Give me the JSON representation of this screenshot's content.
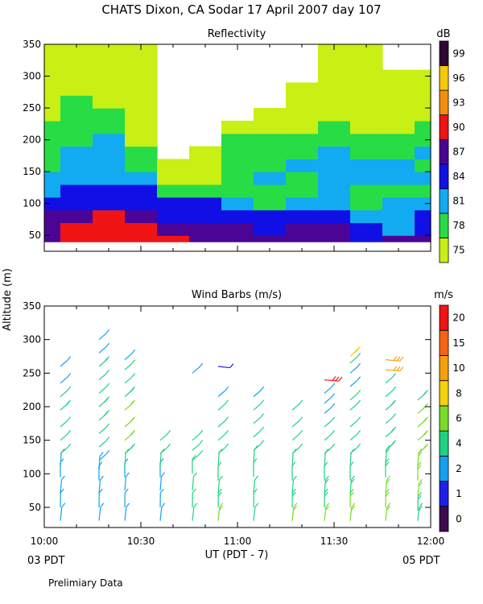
{
  "header": {
    "title": "CHATS Dixon, CA  Sodar  17 April 2007  day 107",
    "y_axis_label": "Altitude (m)",
    "x_axis_label": "UT  (PDT - 7)",
    "start_local": "03 PDT",
    "end_local": "05 PDT",
    "footer_note": "Prelimiary Data"
  },
  "chart_data": [
    {
      "type": "heatmap",
      "title": "Reflectivity",
      "xlabel": "UT  (PDT - 7)",
      "ylabel": "Altitude (m)",
      "x_ticks": [
        "10:00",
        "10:30",
        "11:00",
        "11:30",
        "12:00"
      ],
      "x_range_minutes_after_10UT": [
        0,
        120
      ],
      "ylim": [
        25,
        350
      ],
      "y_ticks": [
        50,
        100,
        150,
        200,
        250,
        300,
        350
      ],
      "colorbar": {
        "unit": "dB",
        "levels": [
          75,
          78,
          81,
          84,
          87,
          90,
          93,
          96,
          99
        ],
        "colors": [
          "#c8f014",
          "#28dc46",
          "#12aaf0",
          "#1010e6",
          "#4b0596",
          "#f01414",
          "#f58c0a",
          "#f5c80a",
          "#2d0a32"
        ]
      },
      "x_minutes": [
        0,
        10,
        20,
        30,
        40,
        50,
        60,
        70,
        80,
        90,
        100,
        110,
        120
      ],
      "altitudes": [
        40,
        60,
        80,
        100,
        120,
        140,
        160,
        180,
        200,
        220,
        240,
        260,
        280,
        300,
        320,
        340
      ],
      "values": [
        [
          88,
          91,
          92,
          91,
          91,
          89,
          88,
          88,
          89,
          88,
          86,
          87,
          87
        ],
        [
          89,
          91,
          92,
          90,
          89,
          88,
          87,
          86,
          88,
          87,
          84,
          83,
          85
        ],
        [
          87,
          87,
          90,
          88,
          86,
          86,
          84,
          84,
          86,
          84,
          82,
          82,
          84
        ],
        [
          84,
          85,
          86,
          86,
          84,
          84,
          81,
          80,
          83,
          82,
          80,
          81,
          82
        ],
        [
          82,
          84,
          85,
          85,
          80,
          80,
          79,
          79,
          80,
          81,
          79,
          79,
          80
        ],
        [
          81,
          82,
          83,
          83,
          77,
          77,
          79,
          82,
          80,
          81,
          81,
          82,
          82
        ],
        [
          80,
          82,
          83,
          80,
          77,
          76,
          80,
          80,
          81,
          81,
          81,
          81,
          80
        ],
        [
          80,
          81,
          83,
          78,
          74,
          76,
          79,
          79,
          80,
          81,
          80,
          80,
          81
        ],
        [
          79,
          80,
          81,
          77,
          74,
          74,
          79,
          78,
          79,
          80,
          79,
          79,
          80
        ],
        [
          79,
          80,
          80,
          76,
          74,
          74,
          76,
          76,
          77,
          79,
          77,
          77,
          78
        ],
        [
          77,
          80,
          79,
          75,
          74,
          74,
          74,
          75,
          75,
          77,
          76,
          76,
          77
        ],
        [
          76,
          78,
          77,
          75,
          74,
          74,
          74,
          74,
          75,
          76,
          76,
          76,
          76
        ],
        [
          76,
          77,
          76,
          75,
          74,
          74,
          74,
          74,
          75,
          76,
          75,
          75,
          76
        ],
        [
          76,
          76,
          75,
          75,
          74,
          74,
          74,
          74,
          74,
          75,
          75,
          75,
          75
        ],
        [
          76,
          76,
          75,
          75,
          74,
          74,
          74,
          74,
          74,
          75,
          75,
          74,
          74
        ],
        [
          76,
          76,
          75,
          75,
          74,
          74,
          74,
          74,
          74,
          75,
          75,
          74,
          74
        ]
      ]
    },
    {
      "type": "scatter",
      "title": "Wind Barbs (m/s)",
      "xlabel": "UT  (PDT - 7)",
      "ylabel": "Altitude (m)",
      "x_ticks": [
        "10:00",
        "10:30",
        "11:00",
        "11:30",
        "12:00"
      ],
      "x_range_minutes_after_10UT": [
        0,
        120
      ],
      "ylim": [
        20,
        350
      ],
      "y_ticks": [
        50,
        100,
        150,
        200,
        250,
        300,
        350
      ],
      "colorbar": {
        "unit": "m/s",
        "labels": [
          "0",
          "1",
          "2",
          "4",
          "6",
          "8",
          "10",
          "15",
          "20"
        ],
        "colors": [
          "#3c0a50",
          "#1e1ee6",
          "#14a0f0",
          "#1ed282",
          "#78dc28",
          "#f5d20a",
          "#f5a00a",
          "#f56414",
          "#f01414"
        ]
      },
      "columns_minutes": [
        5,
        17,
        25,
        36,
        46,
        54,
        65,
        77,
        87,
        95,
        106,
        116
      ],
      "barbs": [
        {
          "t": 5,
          "alt": [
            30,
            50,
            70,
            95,
            110,
            130,
            150,
            170,
            195,
            215,
            235,
            260
          ],
          "speed": [
            2,
            2,
            2,
            2,
            3,
            4,
            4,
            4,
            5,
            4,
            3,
            3
          ]
        },
        {
          "t": 17,
          "alt": [
            30,
            50,
            70,
            90,
            105,
            120,
            140,
            160,
            180,
            200,
            220,
            240,
            260,
            280,
            300
          ],
          "speed": [
            2,
            2,
            2,
            3,
            3,
            3,
            4,
            4,
            5,
            5,
            4,
            4,
            5,
            3,
            3
          ]
        },
        {
          "t": 25,
          "alt": [
            30,
            50,
            75,
            95,
            110,
            130,
            150,
            170,
            195,
            215,
            235,
            255,
            270
          ],
          "speed": [
            2,
            2,
            2,
            3,
            4,
            5,
            6,
            6,
            6,
            5,
            4,
            4,
            3
          ]
        },
        {
          "t": 36,
          "alt": [
            30,
            50,
            75,
            95,
            110,
            130,
            150
          ],
          "speed": [
            3,
            3,
            3,
            3,
            4,
            4,
            4
          ]
        },
        {
          "t": 46,
          "alt": [
            30,
            50,
            75,
            100,
            120,
            135,
            150,
            250
          ],
          "speed": [
            4,
            4,
            4,
            4,
            4,
            4,
            4,
            3
          ]
        },
        {
          "t": 54,
          "alt": [
            30,
            50,
            70,
            90,
            110,
            130,
            150,
            170,
            195,
            215,
            260
          ],
          "speed": [
            6,
            5,
            4,
            4,
            4,
            4,
            4,
            4,
            4,
            3,
            1
          ]
        },
        {
          "t": 65,
          "alt": [
            30,
            50,
            70,
            95,
            115,
            135,
            155,
            175,
            195,
            215
          ],
          "speed": [
            4,
            4,
            4,
            4,
            4,
            4,
            4,
            4,
            4,
            3
          ]
        },
        {
          "t": 77,
          "alt": [
            30,
            50,
            70,
            90,
            110,
            130,
            150,
            170,
            195
          ],
          "speed": [
            6,
            5,
            4,
            4,
            4,
            4,
            4,
            4,
            4
          ]
        },
        {
          "t": 87,
          "alt": [
            30,
            50,
            70,
            90,
            110,
            130,
            150,
            170,
            190,
            205,
            220,
            240
          ],
          "speed": [
            6,
            5,
            5,
            4,
            4,
            4,
            4,
            4,
            3,
            3,
            2,
            20
          ]
        },
        {
          "t": 95,
          "alt": [
            30,
            50,
            70,
            90,
            110,
            130,
            150,
            170,
            195,
            210,
            230,
            250,
            265,
            275
          ],
          "speed": [
            6,
            6,
            5,
            4,
            4,
            4,
            4,
            4,
            4,
            4,
            3,
            3,
            4,
            8
          ]
        },
        {
          "t": 106,
          "alt": [
            30,
            50,
            70,
            95,
            115,
            135,
            155,
            175,
            195,
            215,
            235,
            255,
            270
          ],
          "speed": [
            6,
            6,
            6,
            5,
            5,
            5,
            5,
            4,
            5,
            4,
            4,
            12,
            14
          ]
        },
        {
          "t": 116,
          "alt": [
            30,
            45,
            65,
            90,
            110,
            130,
            150,
            170,
            190,
            210
          ],
          "speed": [
            5,
            5,
            6,
            6,
            6,
            6,
            7,
            6,
            6,
            5
          ]
        }
      ]
    }
  ]
}
